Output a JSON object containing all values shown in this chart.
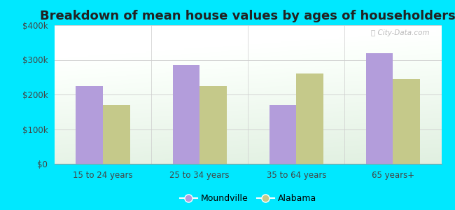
{
  "title": "Breakdown of mean house values by ages of householders",
  "categories": [
    "15 to 24 years",
    "25 to 34 years",
    "35 to 64 years",
    "65 years+"
  ],
  "moundville": [
    225000,
    285000,
    170000,
    320000
  ],
  "alabama": [
    170000,
    225000,
    260000,
    245000
  ],
  "moundville_color": "#b39ddb",
  "alabama_color": "#c5c98a",
  "background_outer": "#00e8ff",
  "ylim": [
    0,
    400000
  ],
  "yticks": [
    0,
    100000,
    200000,
    300000,
    400000
  ],
  "ytick_labels": [
    "$0",
    "$100k",
    "$200k",
    "$300k",
    "$400k"
  ],
  "legend_labels": [
    "Moundville",
    "Alabama"
  ],
  "bar_width": 0.28,
  "title_fontsize": 13,
  "tick_fontsize": 8.5,
  "legend_fontsize": 9
}
